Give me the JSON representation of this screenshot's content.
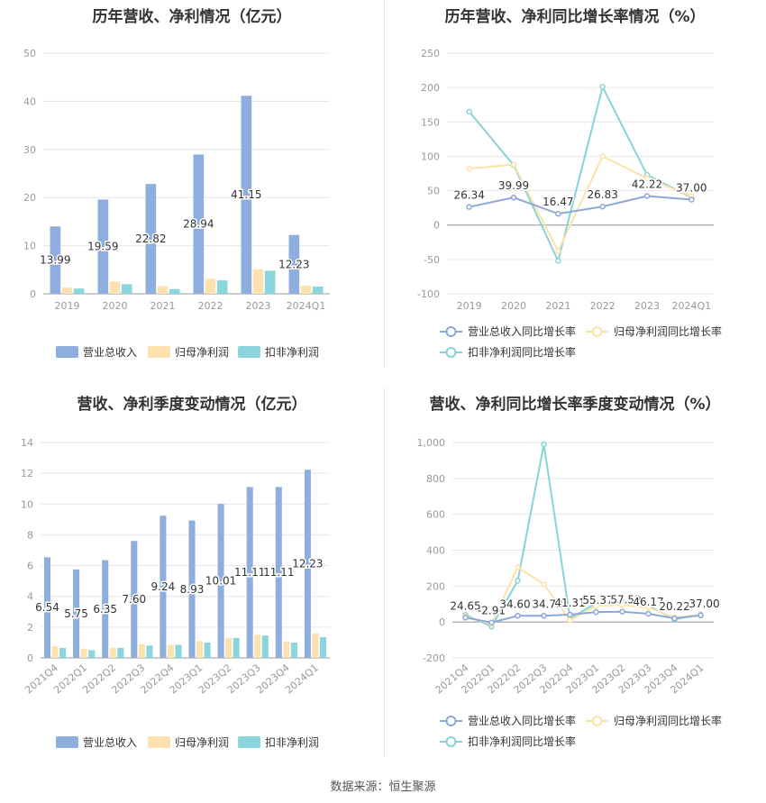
{
  "source_label": "数据来源：恒生聚源",
  "legend_labels": {
    "revenue": "营业总收入",
    "net_profit": "归母净利润",
    "deducted_profit": "扣非净利润",
    "revenue_yoy": "营业总收入同比增长率",
    "net_profit_yoy": "归母净利润同比增长率",
    "deducted_profit_yoy": "扣非净利润同比增长率"
  },
  "colors": {
    "revenue": "#8eaedd",
    "net_profit": "#fde2b0",
    "deducted_profit": "#8ad6dc",
    "revenue_line": "#8ca8d6",
    "net_profit_line": "#fce2a8",
    "deducted_profit_line": "#86d4d8",
    "grid": "#e6e6e6",
    "axis_text": "#999999"
  },
  "chart_data": [
    {
      "type": "bar",
      "title": "历年营收、净利情况（亿元）",
      "categories": [
        "2019",
        "2020",
        "2021",
        "2022",
        "2023",
        "2024Q1"
      ],
      "ylim": [
        0,
        50
      ],
      "yticks": [
        "0",
        "10",
        "20",
        "30",
        "40",
        "50"
      ],
      "series": [
        {
          "name": "营业总收入",
          "values": [
            13.99,
            19.59,
            22.82,
            28.94,
            41.15,
            12.23
          ],
          "labels": [
            "13.99",
            "19.59",
            "22.82",
            "28.94",
            "41.15",
            "12.23"
          ]
        },
        {
          "name": "归母净利润",
          "values": [
            1.3,
            2.5,
            1.6,
            3.1,
            5.1,
            1.7
          ]
        },
        {
          "name": "扣非净利润",
          "values": [
            1.1,
            2.0,
            1.0,
            2.8,
            4.8,
            1.5
          ]
        }
      ],
      "legend": "bottom",
      "grid": true
    },
    {
      "type": "line",
      "title": "历年营收、净利同比增长率情况（%）",
      "categories": [
        "2019",
        "2020",
        "2021",
        "2022",
        "2023",
        "2024Q1"
      ],
      "ylim": [
        -100,
        250
      ],
      "yticks": [
        "-100",
        "-50",
        "0",
        "50",
        "100",
        "150",
        "200",
        "250"
      ],
      "series": [
        {
          "name": "营业总收入同比增长率",
          "values": [
            26.34,
            39.99,
            16.47,
            26.83,
            42.22,
            37.0
          ],
          "labels": [
            "26.34",
            "39.99",
            "16.47",
            "26.83",
            "42.22",
            "37.00"
          ]
        },
        {
          "name": "归母净利润同比增长率",
          "values": [
            82,
            88,
            -38,
            100,
            68,
            42
          ]
        },
        {
          "name": "扣非净利润同比增长率",
          "values": [
            165,
            87,
            -52,
            201,
            73,
            40
          ]
        }
      ],
      "legend": "bottom",
      "grid": true
    },
    {
      "type": "bar",
      "title": "营收、净利季度变动情况（亿元）",
      "categories": [
        "2021Q4",
        "2022Q1",
        "2022Q2",
        "2022Q3",
        "2022Q4",
        "2023Q1",
        "2023Q2",
        "2023Q3",
        "2023Q4",
        "2024Q1"
      ],
      "ylim": [
        0,
        14
      ],
      "yticks": [
        "0",
        "2",
        "4",
        "6",
        "8",
        "10",
        "12",
        "14"
      ],
      "series": [
        {
          "name": "营业总收入",
          "values": [
            6.54,
            5.75,
            6.35,
            7.6,
            9.24,
            8.93,
            10.01,
            11.11,
            11.11,
            12.23
          ],
          "labels": [
            "6.54",
            "5.75",
            "6.35",
            "7.60",
            "9.24",
            "8.93",
            "10.01",
            "11.11",
            "11.11",
            "12.23"
          ]
        },
        {
          "name": "归母净利润",
          "values": [
            0.75,
            0.6,
            0.65,
            0.9,
            0.85,
            1.1,
            1.3,
            1.5,
            1.05,
            1.6
          ]
        },
        {
          "name": "扣非净利润",
          "values": [
            0.65,
            0.5,
            0.65,
            0.8,
            0.85,
            1.0,
            1.3,
            1.45,
            1.0,
            1.35
          ]
        }
      ],
      "legend": "bottom",
      "grid": true
    },
    {
      "type": "line",
      "title": "营收、净利同比增长率季度变动情况（%）",
      "categories": [
        "2021Q4",
        "2022Q1",
        "2022Q2",
        "2022Q3",
        "2022Q4",
        "2023Q1",
        "2023Q2",
        "2023Q3",
        "2023Q4",
        "2024Q1"
      ],
      "ylim": [
        -200,
        1000
      ],
      "yticks": [
        "-200",
        "0",
        "200",
        "400",
        "600",
        "800",
        "1,000"
      ],
      "series": [
        {
          "name": "营业总收入同比增长率",
          "values": [
            24.65,
            -2.91,
            34.6,
            34.7,
            41.31,
            55.37,
            57.59,
            46.17,
            20.22,
            37.0
          ],
          "labels": [
            "24.65",
            "-2.91",
            "34.60",
            "34.73",
            "41.31",
            "55.37",
            "57.59",
            "46.17",
            "20.22",
            "37.00"
          ]
        },
        {
          "name": "归母净利润同比增长率",
          "values": [
            30,
            -10,
            305,
            210,
            10,
            90,
            95,
            80,
            25,
            40
          ]
        },
        {
          "name": "扣非净利润同比增长率",
          "values": [
            40,
            -25,
            230,
            990,
            20,
            105,
            110,
            90,
            15,
            42
          ]
        }
      ],
      "legend": "bottom",
      "grid": true
    }
  ]
}
